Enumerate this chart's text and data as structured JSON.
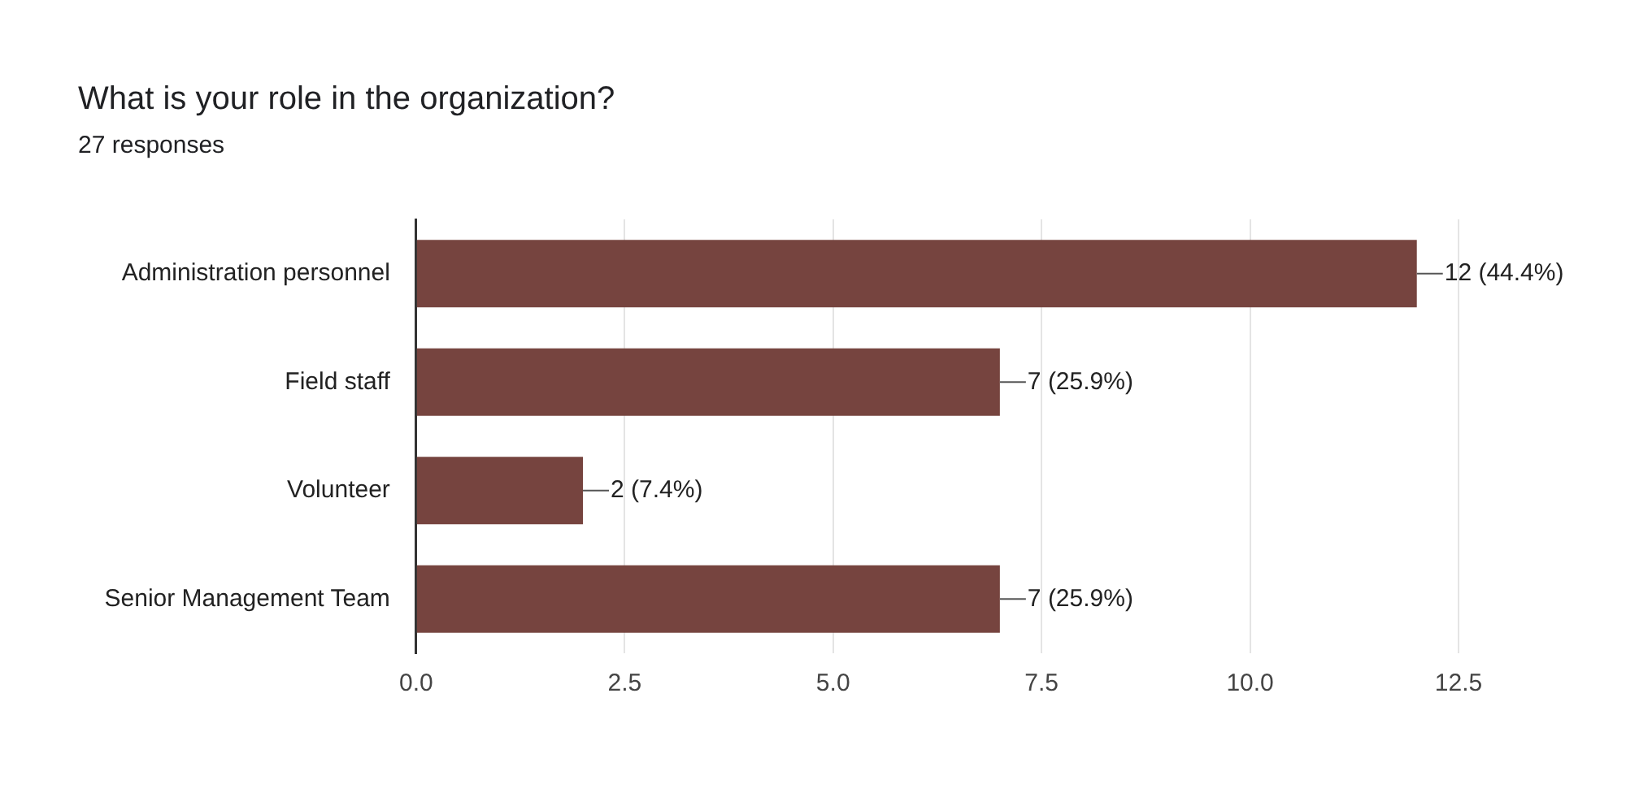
{
  "chart_data": {
    "type": "bar",
    "orientation": "horizontal",
    "title": "What is your role in the organization?",
    "subtitle": "27 responses",
    "categories": [
      "Administration personnel",
      "Field staff",
      "Volunteer",
      "Senior Management Team"
    ],
    "values": [
      12,
      7,
      2,
      7
    ],
    "color": "#76443f",
    "value_labels": [
      "12 (44.4%)",
      "7 (25.9%)",
      "2 (7.4%)",
      "7 (25.9%)"
    ],
    "xlim": [
      0,
      12.5
    ],
    "xticks": [
      {
        "value": 0,
        "label": "0.0"
      },
      {
        "value": 2.5,
        "label": "2.5"
      },
      {
        "value": 5,
        "label": "5.0"
      },
      {
        "value": 7.5,
        "label": "7.5"
      },
      {
        "value": 10,
        "label": "10.0"
      },
      {
        "value": 12.5,
        "label": "12.5"
      }
    ],
    "grid": "x",
    "legend": false
  }
}
